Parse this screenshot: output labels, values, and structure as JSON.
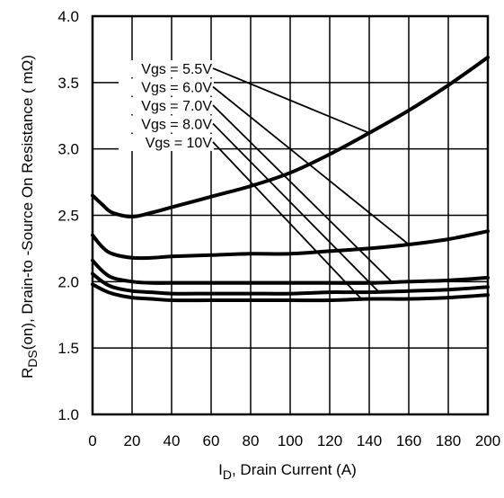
{
  "chart_data": {
    "type": "line",
    "xlabel": {
      "main": "I",
      "sub": "D",
      "rest": ", Drain Current (A)"
    },
    "ylabel": {
      "main": "R",
      "sub": "DS",
      "rest": "(on),  Drain-to -Source On Resistance ( mΩ)"
    },
    "xlim": [
      0,
      200
    ],
    "ylim": [
      1.0,
      4.0
    ],
    "x_ticks": [
      "0",
      "20",
      "40",
      "60",
      "80",
      "100",
      "120",
      "140",
      "160",
      "180",
      "200"
    ],
    "y_ticks": [
      "1.0",
      "1.5",
      "2.0",
      "2.5",
      "3.0",
      "3.5",
      "4.0"
    ],
    "grid": true,
    "legend_placement": "top-left",
    "series": [
      {
        "name": "Vgs = 5.5V",
        "label_anchor": [
          140,
          3.12
        ],
        "x": [
          0,
          5,
          10,
          20,
          30,
          40,
          60,
          80,
          100,
          120,
          140,
          160,
          180,
          200
        ],
        "values": [
          2.65,
          2.58,
          2.52,
          2.49,
          2.52,
          2.56,
          2.64,
          2.72,
          2.82,
          2.96,
          3.12,
          3.29,
          3.48,
          3.69
        ]
      },
      {
        "name": "Vgs = 6.0V",
        "label_anchor": [
          160,
          2.28
        ],
        "x": [
          0,
          5,
          10,
          20,
          30,
          40,
          60,
          80,
          100,
          120,
          140,
          160,
          180,
          200
        ],
        "values": [
          2.35,
          2.26,
          2.21,
          2.18,
          2.18,
          2.19,
          2.2,
          2.21,
          2.21,
          2.23,
          2.25,
          2.28,
          2.32,
          2.38
        ]
      },
      {
        "name": "Vgs = 7.0V",
        "label_anchor": [
          152,
          1.99
        ],
        "x": [
          0,
          5,
          10,
          20,
          30,
          40,
          60,
          80,
          100,
          120,
          140,
          160,
          180,
          200
        ],
        "values": [
          2.16,
          2.08,
          2.03,
          2.0,
          1.99,
          1.99,
          1.99,
          1.99,
          1.99,
          1.99,
          1.99,
          2.0,
          2.01,
          2.03
        ]
      },
      {
        "name": "Vgs = 8.0V",
        "label_anchor": [
          145,
          1.92
        ],
        "x": [
          0,
          5,
          10,
          20,
          30,
          40,
          60,
          80,
          100,
          120,
          140,
          160,
          180,
          200
        ],
        "values": [
          2.06,
          2.0,
          1.96,
          1.93,
          1.92,
          1.91,
          1.91,
          1.91,
          1.91,
          1.92,
          1.92,
          1.93,
          1.94,
          1.96
        ]
      },
      {
        "name": "Vgs = 10V",
        "label_anchor": [
          136,
          1.87
        ],
        "x": [
          0,
          5,
          10,
          20,
          30,
          40,
          60,
          80,
          100,
          120,
          140,
          160,
          180,
          200
        ],
        "values": [
          1.98,
          1.94,
          1.91,
          1.88,
          1.87,
          1.86,
          1.86,
          1.86,
          1.86,
          1.86,
          1.87,
          1.87,
          1.88,
          1.9
        ]
      }
    ]
  },
  "colors": {
    "line": "#000000",
    "grid": "#000000",
    "background": "#ffffff"
  }
}
